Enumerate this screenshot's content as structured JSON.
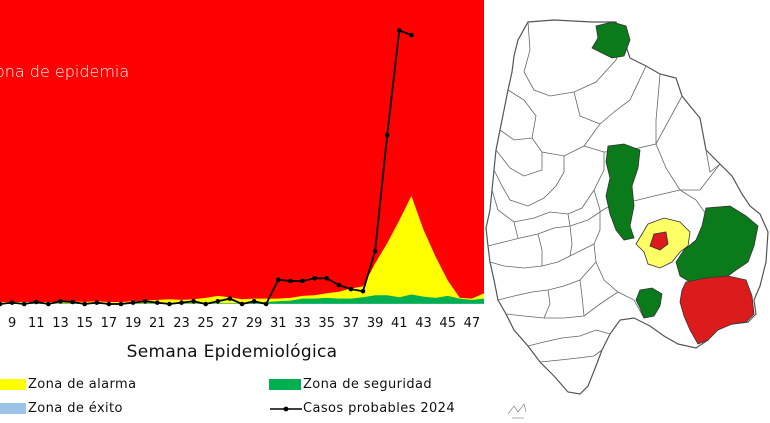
{
  "chart_data": {
    "type": "line",
    "xlabel": "Semana Epidemiológica",
    "zone_text": "Zona de epidemia",
    "x_ticks": [
      9,
      11,
      13,
      15,
      17,
      19,
      21,
      23,
      25,
      27,
      29,
      31,
      33,
      35,
      37,
      39,
      41,
      43,
      45,
      47
    ],
    "weeks": [
      8,
      9,
      10,
      11,
      12,
      13,
      14,
      15,
      16,
      17,
      18,
      19,
      20,
      21,
      22,
      23,
      24,
      25,
      26,
      27,
      28,
      29,
      30,
      31,
      32,
      33,
      34,
      35,
      36,
      37,
      38,
      39,
      40,
      41,
      42,
      43,
      44,
      45,
      46,
      47,
      48
    ],
    "series": [
      {
        "name": "Casos probables 2024",
        "x": [
          8,
          9,
          10,
          11,
          12,
          13,
          14,
          15,
          16,
          17,
          18,
          19,
          20,
          21,
          22,
          23,
          24,
          25,
          26,
          27,
          28,
          29,
          30,
          31,
          32,
          33,
          34,
          35,
          36,
          37,
          38,
          39,
          40,
          41,
          42
        ],
        "values": [
          0,
          0.2,
          0,
          0.3,
          0,
          0.4,
          0.3,
          0,
          0.2,
          0,
          0,
          0.2,
          0.4,
          0.2,
          0,
          0.2,
          0.4,
          0,
          0.4,
          0.8,
          0,
          0.4,
          0,
          3.6,
          3.4,
          3.4,
          3.8,
          3.8,
          2.8,
          2.2,
          1.9,
          7.8,
          25,
          40.5,
          39.8
        ]
      }
    ],
    "zones": {
      "success": [
        0.05,
        0.05,
        0.05,
        0.05,
        0.05,
        0.05,
        0.05,
        0.05,
        0.05,
        0.05,
        0.05,
        0.05,
        0.05,
        0.05,
        0.05,
        0.05,
        0.05,
        0.05,
        0.05,
        0.05,
        0.05,
        0.05,
        0.05,
        0.05,
        0.05,
        0.05,
        0.05,
        0.05,
        0.05,
        0.05,
        0.05,
        0.05,
        0.05,
        0.05,
        0.05,
        0.05,
        0.05,
        0.05,
        0.05,
        0.05,
        0.05
      ],
      "safety": [
        0.1,
        0.1,
        0.1,
        0.1,
        0.1,
        0.1,
        0.1,
        0.1,
        0.1,
        0.1,
        0.1,
        0.1,
        0.1,
        0.1,
        0.1,
        0.1,
        0.1,
        0.1,
        0.1,
        0.1,
        0.1,
        0.2,
        0.3,
        0.4,
        0.5,
        0.8,
        0.8,
        0.9,
        0.8,
        0.8,
        1.0,
        1.3,
        1.3,
        1.0,
        1.4,
        1.1,
        0.9,
        1.2,
        0.8,
        0.6,
        0.8
      ],
      "alarm": [
        0.3,
        0.3,
        0.3,
        0.3,
        0.3,
        0.3,
        0.4,
        0.3,
        0.4,
        0.3,
        0.3,
        0.4,
        0.5,
        0.6,
        0.7,
        0.6,
        0.7,
        0.9,
        1.2,
        1.0,
        0.7,
        0.8,
        0.8,
        0.8,
        0.9,
        1.2,
        1.3,
        1.6,
        1.8,
        2.3,
        2.6,
        6.0,
        9.0,
        12.4,
        16.0,
        11.0,
        7.0,
        3.5,
        0.9,
        0.8,
        1.6
      ]
    },
    "xlim": [
      8,
      48
    ],
    "ylim": [
      0,
      45
    ],
    "legend": [
      {
        "label": "Zona de alarma",
        "color": "#ffff00",
        "kind": "area"
      },
      {
        "label": "Zona de seguridad",
        "color": "#00b050",
        "kind": "area"
      },
      {
        "label": "Zona de éxito",
        "color": "#9dc3e6",
        "kind": "area"
      },
      {
        "label": "Casos probables 2024",
        "color": "#000000",
        "kind": "line-marker"
      }
    ],
    "colors": {
      "epidemic": "#ff0000",
      "alarm": "#ffff00",
      "safety": "#00b050",
      "success": "#9dc3e6",
      "cases": "#000000"
    }
  },
  "map": {
    "colors": {
      "green": "#0a7a1a",
      "red": "#dc1c1c",
      "yellow": "#ffff66",
      "outline": "#555555",
      "fill": "#ffffff"
    }
  }
}
